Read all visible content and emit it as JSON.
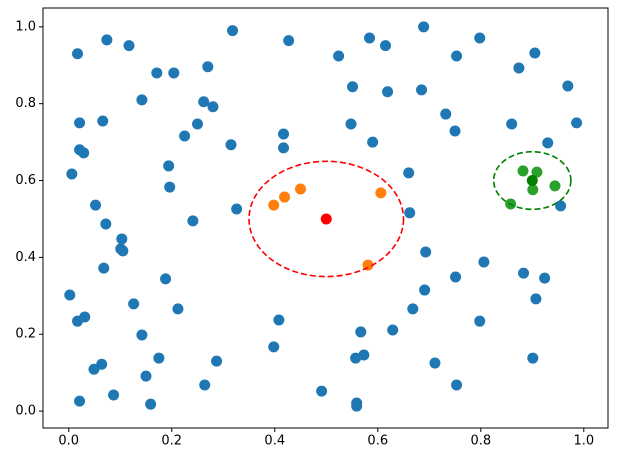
{
  "chart_data": {
    "type": "scatter",
    "xlim": [
      -0.05,
      1.047
    ],
    "ylim": [
      -0.044,
      1.049
    ],
    "xticks": [
      {
        "value": 0,
        "label": "0.0"
      },
      {
        "value": 0.2,
        "label": "0.2"
      },
      {
        "value": 0.4,
        "label": "0.4"
      },
      {
        "value": 0.6,
        "label": "0.6"
      },
      {
        "value": 0.8,
        "label": "0.8"
      },
      {
        "value": 1,
        "label": "1.0"
      }
    ],
    "yticks": [
      {
        "value": 0,
        "label": "0.0"
      },
      {
        "value": 0.2,
        "label": "0.2"
      },
      {
        "value": 0.4,
        "label": "0.4"
      },
      {
        "value": 0.6,
        "label": "0.6"
      },
      {
        "value": 0.8,
        "label": "0.8"
      },
      {
        "value": 1,
        "label": "1.0"
      }
    ],
    "grid": false,
    "series": [
      {
        "color": "#1f77b4",
        "x": [
          0.017,
          0.074,
          0.117,
          0.318,
          0.427,
          0.689,
          0.584,
          0.615,
          0.798,
          0.753,
          0.905,
          0.524,
          0.27,
          0.171,
          0.204,
          0.874,
          0.969,
          0.551,
          0.619,
          0.685,
          0.142,
          0.262,
          0.28,
          0.021,
          0.066,
          0.732,
          0.75,
          0.86,
          0.986,
          0.25,
          0.225,
          0.417,
          0.548,
          0.021,
          0.029,
          0.315,
          0.417,
          0.59,
          0.93,
          0.006,
          0.194,
          0.66,
          0.196,
          0.052,
          0.326,
          0.662,
          0.955,
          0.241,
          0.072,
          0.103,
          0.101,
          0.105,
          0.693,
          0.806,
          0.068,
          0.188,
          0.751,
          0.883,
          0.924,
          0.002,
          0.691,
          0.907,
          0.126,
          0.212,
          0.668,
          0.017,
          0.031,
          0.408,
          0.798,
          0.142,
          0.567,
          0.629,
          0.398,
          0.175,
          0.064,
          0.287,
          0.557,
          0.573,
          0.711,
          0.901,
          0.049,
          0.15,
          0.264,
          0.753,
          0.491,
          0.021,
          0.087,
          0.159,
          0.559,
          0.559
        ],
        "y": [
          0.93,
          0.966,
          0.951,
          0.99,
          0.964,
          1.0,
          0.971,
          0.951,
          0.971,
          0.924,
          0.932,
          0.924,
          0.896,
          0.88,
          0.88,
          0.893,
          0.846,
          0.844,
          0.831,
          0.836,
          0.81,
          0.805,
          0.792,
          0.75,
          0.755,
          0.773,
          0.729,
          0.747,
          0.75,
          0.747,
          0.716,
          0.721,
          0.747,
          0.68,
          0.672,
          0.693,
          0.685,
          0.7,
          0.698,
          0.617,
          0.638,
          0.62,
          0.583,
          0.536,
          0.526,
          0.516,
          0.534,
          0.495,
          0.487,
          0.448,
          0.422,
          0.417,
          0.414,
          0.388,
          0.372,
          0.344,
          0.349,
          0.359,
          0.346,
          0.302,
          0.315,
          0.292,
          0.279,
          0.266,
          0.266,
          0.234,
          0.245,
          0.237,
          0.234,
          0.198,
          0.206,
          0.211,
          0.167,
          0.138,
          0.122,
          0.13,
          0.138,
          0.146,
          0.125,
          0.138,
          0.109,
          0.091,
          0.068,
          0.068,
          0.052,
          0.026,
          0.042,
          0.018,
          0.021,
          0.013
        ]
      },
      {
        "color": "#ff7f0e",
        "x": [
          0.398,
          0.419,
          0.45,
          0.606,
          0.581
        ],
        "y": [
          0.536,
          0.557,
          0.578,
          0.568,
          0.38
        ]
      },
      {
        "color": "red",
        "x": [
          0.5
        ],
        "y": [
          0.5
        ]
      },
      {
        "color": "#2ca02c",
        "x": [
          0.858,
          0.882,
          0.909,
          0.901,
          0.944
        ],
        "y": [
          0.539,
          0.625,
          0.622,
          0.576,
          0.586
        ]
      },
      {
        "color": "green",
        "x": [
          0.9
        ],
        "y": [
          0.6
        ]
      }
    ],
    "circles": [
      {
        "center": [
          0.5,
          0.5
        ],
        "radius": 0.15,
        "color": "red"
      },
      {
        "center": [
          0.9,
          0.6
        ],
        "radius": 0.075,
        "color": "green"
      }
    ]
  }
}
